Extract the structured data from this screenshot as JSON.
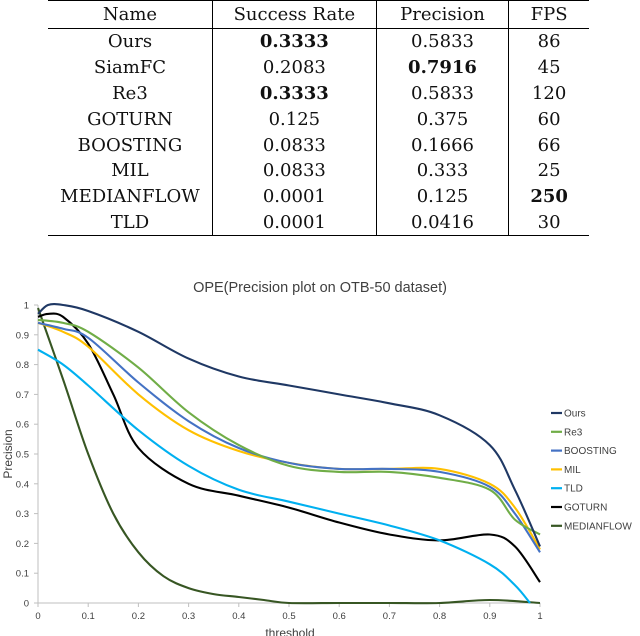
{
  "table": {
    "headers": [
      "Name",
      "Success Rate",
      "Precision",
      "FPS"
    ],
    "rows": [
      {
        "name": "Ours",
        "success_rate": "0.3333",
        "precision": "0.5833",
        "fps": "86",
        "bold": [
          "success_rate"
        ]
      },
      {
        "name": "SiamFC",
        "success_rate": "0.2083",
        "precision": "0.7916",
        "fps": "45",
        "bold": [
          "precision"
        ]
      },
      {
        "name": "Re3",
        "success_rate": "0.3333",
        "precision": "0.5833",
        "fps": "120",
        "bold": [
          "success_rate"
        ]
      },
      {
        "name": "GOTURN",
        "success_rate": "0.125",
        "precision": "0.375",
        "fps": "60",
        "bold": []
      },
      {
        "name": "BOOSTING",
        "success_rate": "0.0833",
        "precision": "0.1666",
        "fps": "66",
        "bold": []
      },
      {
        "name": "MIL",
        "success_rate": "0.0833",
        "precision": "0.333",
        "fps": "25",
        "bold": []
      },
      {
        "name": "MEDIANFLOW",
        "success_rate": "0.0001",
        "precision": "0.125",
        "fps": "250",
        "bold": [
          "fps"
        ]
      },
      {
        "name": "TLD",
        "success_rate": "0.0001",
        "precision": "0.0416",
        "fps": "30",
        "bold": []
      }
    ]
  },
  "chart_data": {
    "type": "line",
    "title": "OPE(Precision plot on OTB-50 dataset)",
    "xlabel": "threshold",
    "ylabel": "Precision",
    "xlim": [
      0,
      1
    ],
    "ylim": [
      0,
      1
    ],
    "x_ticks": [
      "0",
      "0.1",
      "0.2",
      "0.3",
      "0.4",
      "0.5",
      "0.6",
      "0.7",
      "0.8",
      "0.9",
      "1"
    ],
    "y_ticks": [
      "0",
      "0.1",
      "0.2",
      "0.3",
      "0.4",
      "0.5",
      "0.6",
      "0.7",
      "0.8",
      "0.9",
      "1"
    ],
    "legend_position": "right",
    "series": [
      {
        "name": "Ours",
        "color": "#1F3864",
        "x": [
          0,
          0.02,
          0.05,
          0.1,
          0.2,
          0.3,
          0.4,
          0.5,
          0.6,
          0.7,
          0.8,
          0.9,
          0.95,
          1.0
        ],
        "y": [
          0.97,
          1.0,
          1.0,
          0.98,
          0.91,
          0.82,
          0.76,
          0.73,
          0.7,
          0.67,
          0.63,
          0.53,
          0.38,
          0.19
        ]
      },
      {
        "name": "Re3",
        "color": "#70AD47",
        "x": [
          0,
          0.05,
          0.1,
          0.2,
          0.3,
          0.4,
          0.5,
          0.6,
          0.7,
          0.8,
          0.9,
          0.95,
          1.0
        ],
        "y": [
          0.95,
          0.94,
          0.91,
          0.79,
          0.64,
          0.53,
          0.46,
          0.44,
          0.44,
          0.42,
          0.38,
          0.28,
          0.23
        ]
      },
      {
        "name": "BOOSTING",
        "color": "#4472C4",
        "x": [
          0,
          0.05,
          0.1,
          0.2,
          0.3,
          0.4,
          0.5,
          0.6,
          0.7,
          0.8,
          0.9,
          0.95,
          1.0
        ],
        "y": [
          0.94,
          0.92,
          0.89,
          0.74,
          0.61,
          0.52,
          0.47,
          0.45,
          0.45,
          0.44,
          0.39,
          0.3,
          0.17
        ]
      },
      {
        "name": "MIL",
        "color": "#FFC000",
        "x": [
          0,
          0.05,
          0.1,
          0.2,
          0.3,
          0.4,
          0.5,
          0.6,
          0.7,
          0.8,
          0.9,
          0.95,
          1.0
        ],
        "y": [
          0.94,
          0.91,
          0.86,
          0.7,
          0.58,
          0.51,
          0.47,
          0.45,
          0.45,
          0.45,
          0.4,
          0.32,
          0.18
        ]
      },
      {
        "name": "TLD",
        "color": "#00B0F0",
        "x": [
          0,
          0.05,
          0.1,
          0.2,
          0.3,
          0.4,
          0.5,
          0.6,
          0.7,
          0.8,
          0.9,
          0.95,
          0.98
        ],
        "y": [
          0.85,
          0.8,
          0.73,
          0.58,
          0.46,
          0.38,
          0.34,
          0.3,
          0.26,
          0.21,
          0.13,
          0.06,
          0.0
        ]
      },
      {
        "name": "GOTURN",
        "color": "#000000",
        "x": [
          0,
          0.02,
          0.05,
          0.1,
          0.15,
          0.2,
          0.3,
          0.4,
          0.5,
          0.6,
          0.7,
          0.8,
          0.9,
          0.95,
          1.0
        ],
        "y": [
          0.96,
          0.97,
          0.96,
          0.87,
          0.7,
          0.52,
          0.4,
          0.36,
          0.32,
          0.27,
          0.23,
          0.21,
          0.23,
          0.19,
          0.07
        ]
      },
      {
        "name": "MEDIANFLOW",
        "color": "#375623",
        "x": [
          0,
          0.05,
          0.1,
          0.15,
          0.2,
          0.25,
          0.3,
          0.35,
          0.4,
          0.45,
          0.5,
          0.6,
          0.7,
          0.8,
          0.9,
          1.0
        ],
        "y": [
          0.99,
          0.75,
          0.5,
          0.3,
          0.17,
          0.09,
          0.05,
          0.03,
          0.02,
          0.01,
          0.0,
          0.0,
          0.0,
          0.0,
          0.01,
          0.0
        ]
      }
    ]
  }
}
